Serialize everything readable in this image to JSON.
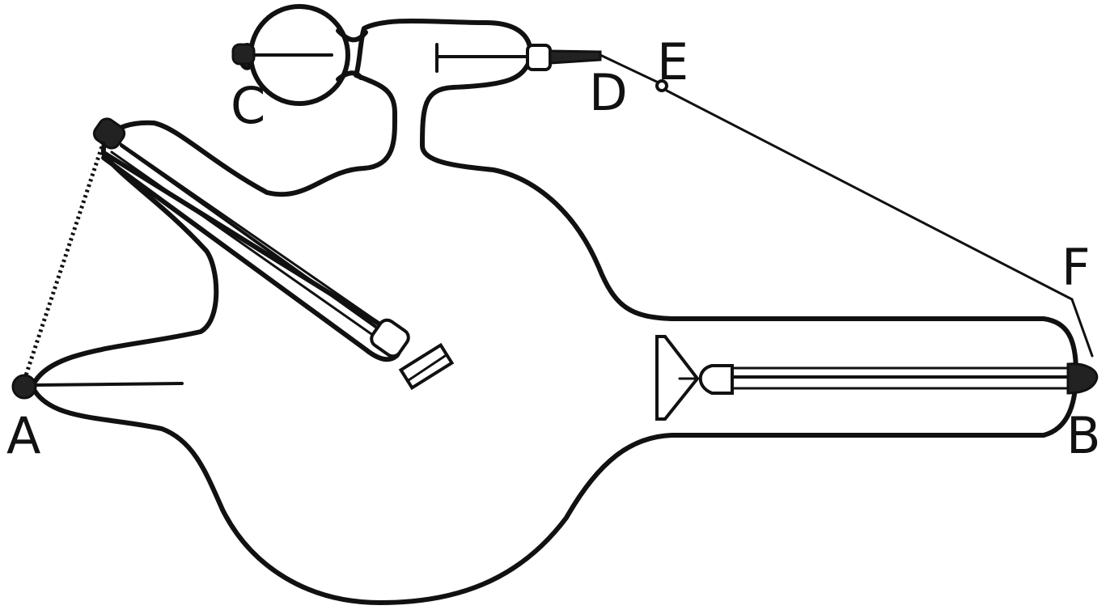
{
  "labels": {
    "a": "A",
    "b": "B",
    "c": "C",
    "d": "D",
    "e": "E",
    "f": "F"
  },
  "colors": {
    "ink": "#111111",
    "paper": "#ffffff"
  }
}
